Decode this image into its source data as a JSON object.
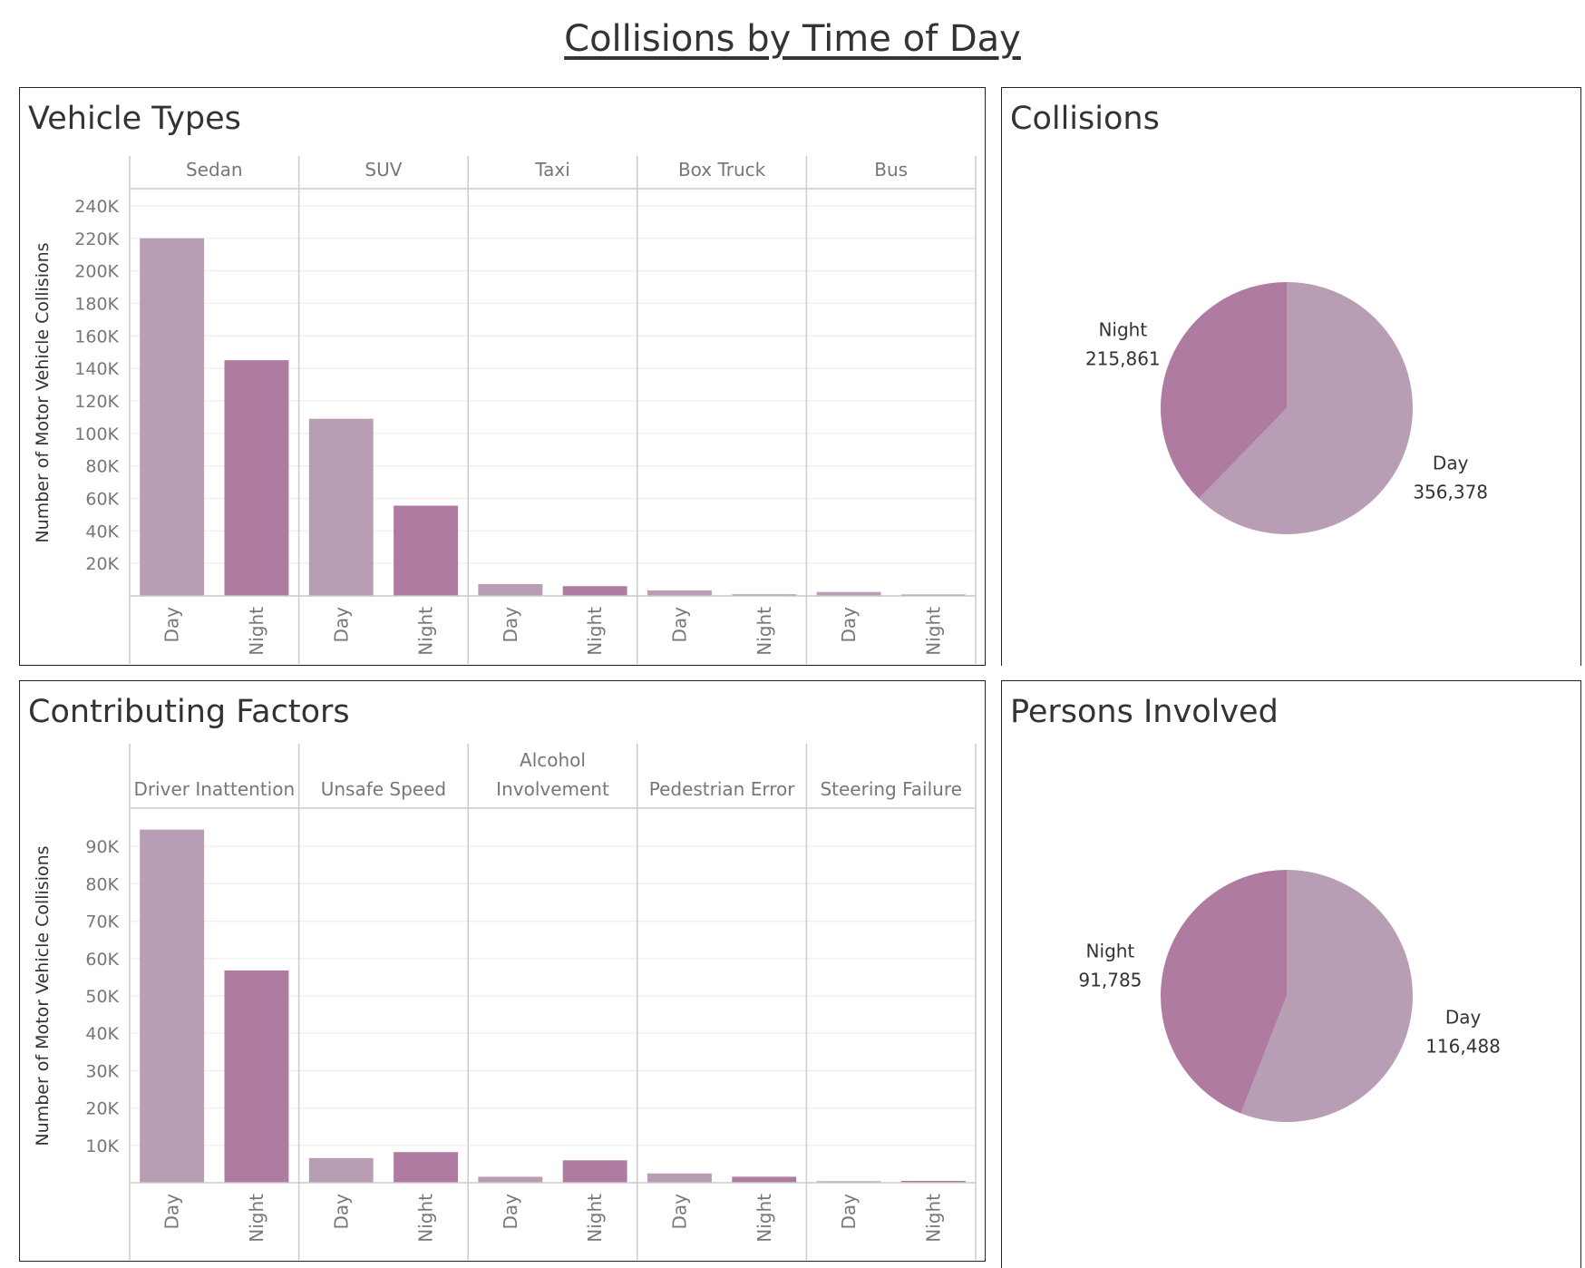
{
  "dashboard": {
    "title": "Collisions by Time of Day"
  },
  "colors": {
    "day": "#b89eb4",
    "night": "#b07ba1",
    "grid": "#eeeeee",
    "divider": "#cccccc",
    "text": "#333333",
    "tick": "#777777"
  },
  "panels": {
    "vehicle_types": {
      "title": "Vehicle Types"
    },
    "collisions": {
      "title": "Collisions"
    },
    "contributing_factors": {
      "title": "Contributing Factors"
    },
    "persons_involved": {
      "title": "Persons Involved"
    }
  },
  "chart_data": [
    {
      "id": "vehicle_types",
      "type": "bar",
      "title": "Vehicle Types",
      "ylabel": "Number of Motor Vehicle Collisions",
      "ylim": [
        0,
        250000
      ],
      "yticks": [
        20000,
        40000,
        60000,
        80000,
        100000,
        120000,
        140000,
        160000,
        180000,
        200000,
        220000,
        240000
      ],
      "ytick_labels": [
        "20K",
        "40K",
        "60K",
        "80K",
        "100K",
        "120K",
        "140K",
        "160K",
        "180K",
        "200K",
        "220K",
        "240K"
      ],
      "groups": [
        {
          "label": [
            "Sedan"
          ],
          "values": [
            220000,
            145000
          ]
        },
        {
          "label": [
            "SUV"
          ],
          "values": [
            109000,
            55500
          ]
        },
        {
          "label": [
            "Taxi"
          ],
          "values": [
            7300,
            6000
          ]
        },
        {
          "label": [
            "Box Truck"
          ],
          "values": [
            3400,
            900
          ]
        },
        {
          "label": [
            "Bus"
          ],
          "values": [
            2400,
            800
          ]
        }
      ],
      "subcategories": [
        "Day",
        "Night"
      ],
      "grid": true
    },
    {
      "id": "contributing_factors",
      "type": "bar",
      "title": "Contributing Factors",
      "ylabel": "Number of Motor Vehicle Collisions",
      "ylim": [
        0,
        100000
      ],
      "yticks": [
        10000,
        20000,
        30000,
        40000,
        50000,
        60000,
        70000,
        80000,
        90000
      ],
      "ytick_labels": [
        "10K",
        "20K",
        "30K",
        "40K",
        "50K",
        "60K",
        "70K",
        "80K",
        "90K"
      ],
      "groups": [
        {
          "label": [
            "Driver Inattention"
          ],
          "values": [
            94500,
            56800
          ]
        },
        {
          "label": [
            "Unsafe Speed"
          ],
          "values": [
            6600,
            8200
          ]
        },
        {
          "label": [
            "Alcohol",
            "Involvement"
          ],
          "values": [
            1600,
            6000
          ]
        },
        {
          "label": [
            "Pedestrian Error"
          ],
          "values": [
            2500,
            1600
          ]
        },
        {
          "label": [
            "Steering Failure"
          ],
          "values": [
            400,
            500
          ]
        }
      ],
      "subcategories": [
        "Day",
        "Night"
      ],
      "grid": true
    },
    {
      "id": "collisions",
      "type": "pie",
      "title": "Collisions",
      "slices": [
        {
          "label": "Day",
          "value": 356378,
          "value_label": "356,378"
        },
        {
          "label": "Night",
          "value": 215861,
          "value_label": "215,861"
        }
      ]
    },
    {
      "id": "persons_involved",
      "type": "pie",
      "title": "Persons Involved",
      "slices": [
        {
          "label": "Day",
          "value": 116488,
          "value_label": "116,488"
        },
        {
          "label": "Night",
          "value": 91785,
          "value_label": "91,785"
        }
      ]
    }
  ]
}
